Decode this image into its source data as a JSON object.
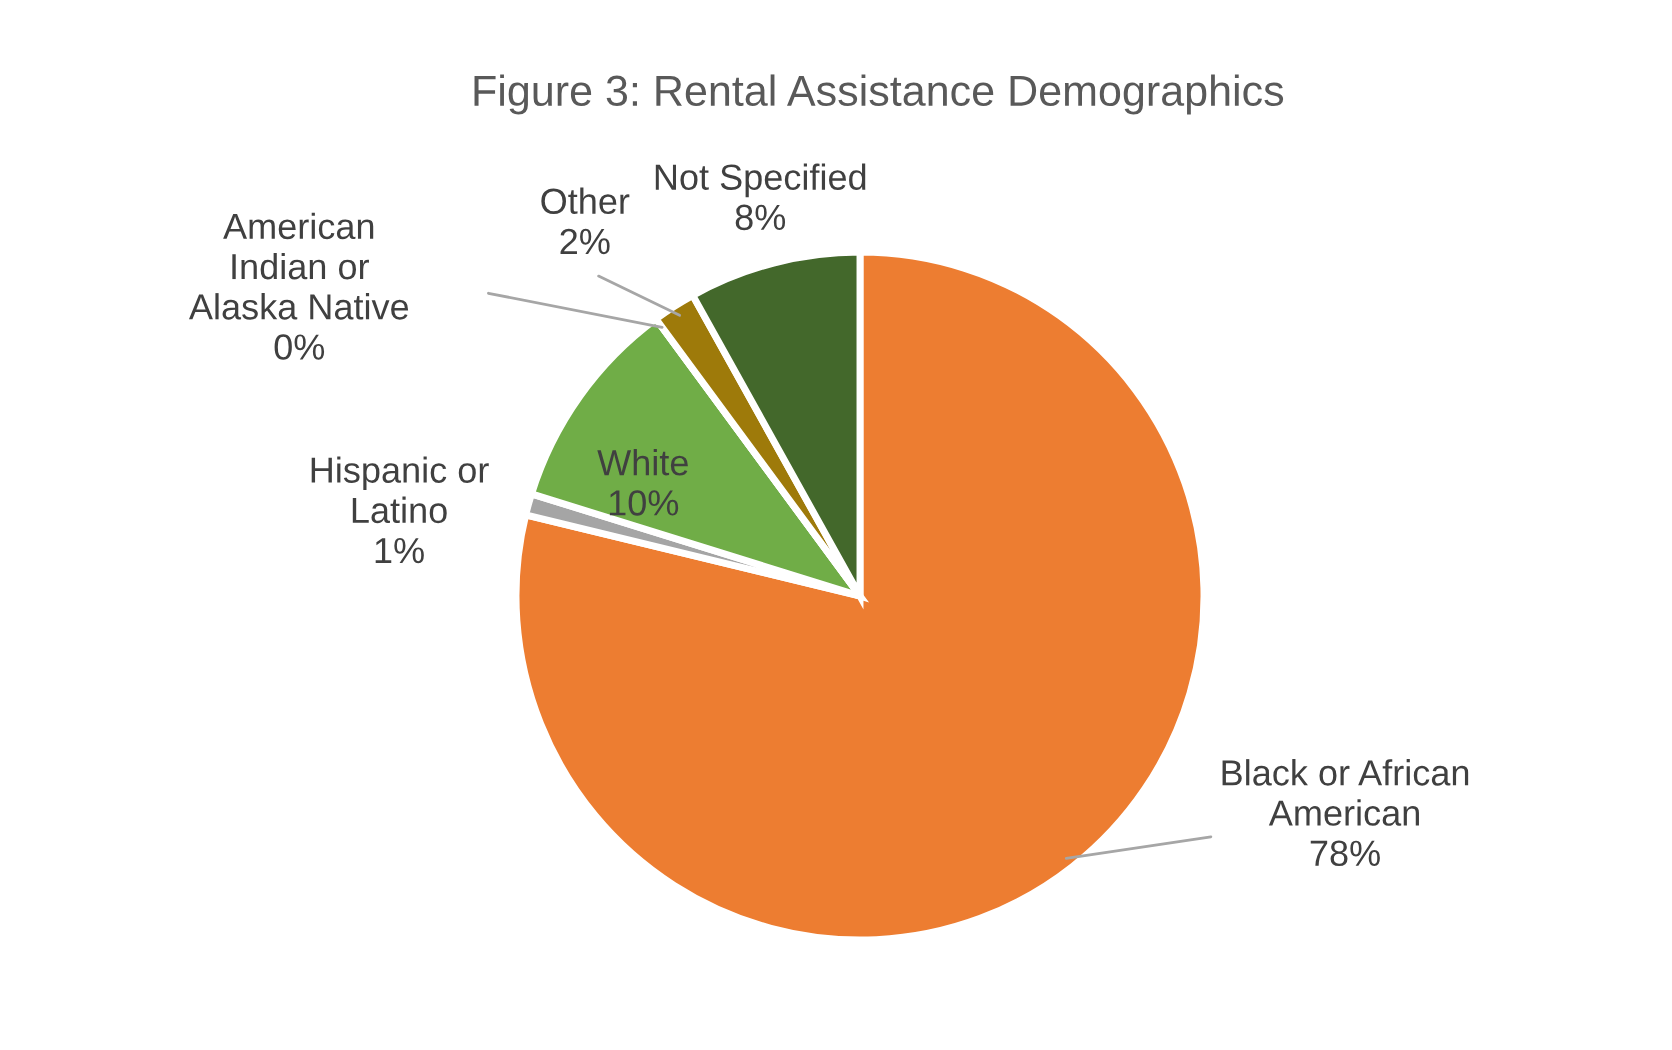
{
  "chart_data": {
    "type": "pie",
    "title": "Figure 3: Rental Assistance Demographics",
    "categories": [
      "Black or African American",
      "Hispanic or Latino",
      "White",
      "American Indian or Alaska Native",
      "Other",
      "Not Specified"
    ],
    "values": [
      78,
      1,
      10,
      0,
      2,
      8
    ],
    "value_labels": [
      "78%",
      "1%",
      "10%",
      "0%",
      "2%",
      "8%"
    ],
    "colors": [
      "#ed7d31",
      "#a5a5a5",
      "#70ad47",
      "#ffc000",
      "#9e7a0a",
      "#43682b"
    ]
  }
}
